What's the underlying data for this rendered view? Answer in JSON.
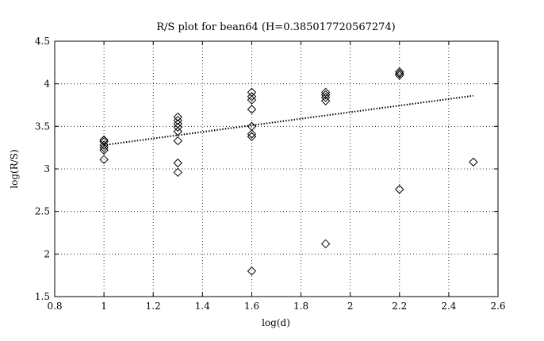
{
  "chart_data": {
    "type": "scatter",
    "title": "R/S plot for bean64 (H=0.385017720567274)",
    "xlabel": "log(d)",
    "ylabel": "log(R/S)",
    "xlim": [
      0.8,
      2.6
    ],
    "ylim": [
      1.5,
      4.5
    ],
    "xticks": [
      "0.8",
      "1",
      "1.2",
      "1.4",
      "1.6",
      "1.8",
      "2",
      "2.2",
      "2.4",
      "2.6"
    ],
    "yticks": [
      "1.5",
      "2",
      "2.5",
      "3",
      "3.5",
      "4",
      "4.5"
    ],
    "grid": true,
    "marker": "diamond",
    "points": [
      {
        "x": 1.0,
        "y": 3.11
      },
      {
        "x": 1.0,
        "y": 3.22
      },
      {
        "x": 1.0,
        "y": 3.25
      },
      {
        "x": 1.0,
        "y": 3.28
      },
      {
        "x": 1.0,
        "y": 3.32
      },
      {
        "x": 1.0,
        "y": 3.34
      },
      {
        "x": 1.3,
        "y": 2.96
      },
      {
        "x": 1.3,
        "y": 3.07
      },
      {
        "x": 1.3,
        "y": 3.33
      },
      {
        "x": 1.3,
        "y": 3.44
      },
      {
        "x": 1.3,
        "y": 3.49
      },
      {
        "x": 1.3,
        "y": 3.53
      },
      {
        "x": 1.3,
        "y": 3.57
      },
      {
        "x": 1.3,
        "y": 3.61
      },
      {
        "x": 1.6,
        "y": 1.8
      },
      {
        "x": 1.6,
        "y": 3.38
      },
      {
        "x": 1.6,
        "y": 3.41
      },
      {
        "x": 1.6,
        "y": 3.5
      },
      {
        "x": 1.6,
        "y": 3.7
      },
      {
        "x": 1.6,
        "y": 3.81
      },
      {
        "x": 1.6,
        "y": 3.85
      },
      {
        "x": 1.6,
        "y": 3.9
      },
      {
        "x": 1.9,
        "y": 2.12
      },
      {
        "x": 1.9,
        "y": 3.8
      },
      {
        "x": 1.9,
        "y": 3.84
      },
      {
        "x": 1.9,
        "y": 3.87
      },
      {
        "x": 1.9,
        "y": 3.9
      },
      {
        "x": 2.2,
        "y": 2.76
      },
      {
        "x": 2.2,
        "y": 4.1
      },
      {
        "x": 2.2,
        "y": 4.12
      },
      {
        "x": 2.2,
        "y": 4.14
      },
      {
        "x": 2.5,
        "y": 3.08
      }
    ],
    "fit_line": {
      "style": "dotted",
      "x": [
        1.0,
        2.5
      ],
      "y": [
        3.28,
        3.86
      ]
    }
  }
}
